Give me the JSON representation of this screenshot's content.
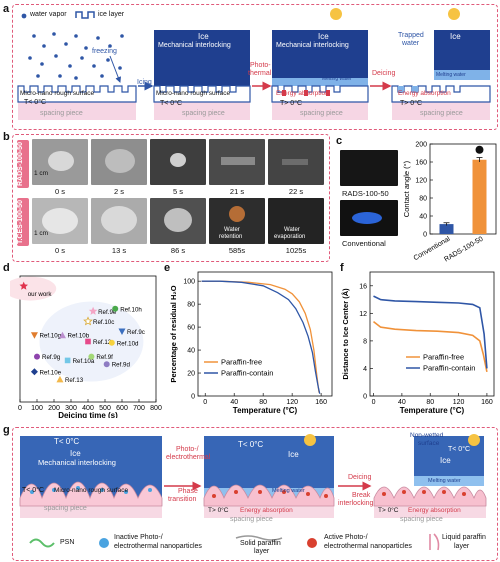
{
  "panel_a": {
    "label": "a",
    "legend_vapor": "water vapor",
    "legend_ice": "ice layer",
    "freezing": "freezing",
    "surface": "Micro-nano rough surface",
    "temp_below": "T< 0°C",
    "spacing": "spacing piece",
    "icing": "Icing",
    "ice": "Ice",
    "mechanical": "Mechanical interlocking",
    "photothermal_1": "Photo-",
    "photothermal_2": "thermal",
    "energy": "Energy absorption",
    "melting": "Melting water",
    "temp_above": "T> 0°C",
    "deicing": "Deicing",
    "trapped_1": "Trapped",
    "trapped_2": "water"
  },
  "panel_b": {
    "label": "b",
    "row1_tag": "RADS-100-50",
    "row2_tag": "T.CES-100-50",
    "scale": "1 cm",
    "row1_times": [
      "0 s",
      "2 s",
      "5 s",
      "21 s",
      "22 s"
    ],
    "row2_times": [
      "0 s",
      "13 s",
      "86 s",
      "585s",
      "1025s"
    ],
    "retention_1": "Water",
    "retention_2": "retention",
    "evaporation_1": "Water",
    "evaporation_2": "evaporation"
  },
  "panel_c": {
    "label": "c",
    "top_caption": "RADS-100-50",
    "bottom_caption": "Conventional"
  },
  "panel_d": {
    "label": "d",
    "our_work": "our work"
  },
  "panel_e": {
    "label": "e"
  },
  "panel_f": {
    "label": "f"
  },
  "panel_g": {
    "label": "g",
    "temp_below": "T< 0°C",
    "ice": "Ice",
    "mechanical": "Mechanical interlocking",
    "surface": "Micro-nano rough surface",
    "spacing": "spacing piece",
    "photo_1": "Photo-/",
    "photo_2": "electrothermal",
    "phase_1": "Phase",
    "phase_2": "transition",
    "melting": "Melting water",
    "temp_above": "T> 0°C",
    "energy": "Energy absorption",
    "deicing": "Deicing",
    "break_1": "Break",
    "break_2": "interlocking",
    "nonwet_1": "Non-wetted",
    "nonwet_2": "surface",
    "legend_psn": "PSN",
    "legend_inactive_1": "Inactive Photo-/",
    "legend_inactive_2": "electrothermal nanoparticles",
    "legend_solid_1": "Solid paraffin",
    "legend_solid_2": "layer",
    "legend_active_1": "Active Photo-/",
    "legend_active_2": "electrothermal nanoparticles",
    "legend_liquid_1": "Liquid paraffin",
    "legend_liquid_2": "layer"
  },
  "chart_data": [
    {
      "type": "bar",
      "id": "c",
      "categories": [
        "Conventional",
        "RADS-100-50"
      ],
      "values": [
        22,
        165
      ],
      "errors": [
        3,
        5
      ],
      "ylabel": "Contact angle (°)",
      "ylim": [
        0,
        200
      ],
      "yticks": [
        0,
        40,
        80,
        120,
        160,
        200
      ],
      "colors": [
        "#2f56a6",
        "#f0923a"
      ]
    },
    {
      "type": "scatter",
      "id": "d",
      "xlabel": "Deicing time (s)",
      "xlim": [
        0,
        800
      ],
      "xticks": [
        0,
        100,
        200,
        300,
        400,
        500,
        600,
        700,
        800
      ],
      "points": [
        {
          "label": "our work",
          "x": 22,
          "y": 0.92,
          "color": "#e0324c",
          "marker": "star"
        },
        {
          "label": "Ref.9e",
          "x": 430,
          "y": 0.72,
          "color": "#f3a5c5",
          "marker": "star"
        },
        {
          "label": "Ref.10h",
          "x": 560,
          "y": 0.74,
          "color": "#49a84a",
          "marker": "circle"
        },
        {
          "label": "Ref.10c",
          "x": 400,
          "y": 0.64,
          "color": "#ffffff",
          "marker": "star-open"
        },
        {
          "label": "Ref.9c",
          "x": 600,
          "y": 0.56,
          "color": "#3b6fbf",
          "marker": "triangle-down"
        },
        {
          "label": "Ref.10g",
          "x": 85,
          "y": 0.53,
          "color": "#e07d2e",
          "marker": "triangle-down"
        },
        {
          "label": "Ref.10b",
          "x": 250,
          "y": 0.53,
          "color": "#bb8fce",
          "marker": "triangle"
        },
        {
          "label": "Ref.12",
          "x": 400,
          "y": 0.48,
          "color": "#e64a8a",
          "marker": "square"
        },
        {
          "label": "Ref.10d",
          "x": 540,
          "y": 0.47,
          "color": "#f7d23d",
          "marker": "circle"
        },
        {
          "label": "Ref.9g",
          "x": 100,
          "y": 0.36,
          "color": "#8e44ad",
          "marker": "circle"
        },
        {
          "label": "Ref.10a",
          "x": 280,
          "y": 0.33,
          "color": "#72c7e7",
          "marker": "square"
        },
        {
          "label": "Ref.9f",
          "x": 420,
          "y": 0.36,
          "color": "#a3d977",
          "marker": "circle"
        },
        {
          "label": "Ref.9d",
          "x": 510,
          "y": 0.3,
          "color": "#8e7cc3",
          "marker": "circle"
        },
        {
          "label": "Ref.10e",
          "x": 85,
          "y": 0.24,
          "color": "#1f3f8f",
          "marker": "diamond"
        },
        {
          "label": "Ref.13",
          "x": 235,
          "y": 0.18,
          "color": "#f2b84b",
          "marker": "triangle"
        }
      ]
    },
    {
      "type": "line",
      "id": "e",
      "xlabel": "Temperature (°C)",
      "ylabel": "Percentage of residual H₂O",
      "xlim": [
        -10,
        175
      ],
      "ylim": [
        0,
        108
      ],
      "xticks": [
        0,
        40,
        80,
        120,
        160
      ],
      "yticks": [
        0,
        20,
        40,
        60,
        80,
        100
      ],
      "series": [
        {
          "name": "Paraffin-free",
          "color": "#f0923a",
          "x": [
            -5,
            20,
            60,
            90,
            110,
            120,
            130,
            138,
            145,
            150,
            154,
            157
          ],
          "y": [
            100,
            100,
            99,
            97,
            93,
            89,
            82,
            72,
            58,
            40,
            18,
            3
          ]
        },
        {
          "name": "Paraffin-contain",
          "color": "#2f56a6",
          "x": [
            -5,
            20,
            50,
            80,
            100,
            115,
            125,
            135,
            142,
            148,
            152,
            156,
            158
          ],
          "y": [
            100,
            100,
            99,
            96,
            90,
            84,
            76,
            64,
            52,
            38,
            22,
            8,
            2
          ]
        }
      ]
    },
    {
      "type": "line",
      "id": "f",
      "xlabel": "Temperature (°C)",
      "ylabel": "Distance to Ice Center (Å)",
      "xlim": [
        -5,
        170
      ],
      "ylim": [
        0,
        18
      ],
      "xticks": [
        0,
        40,
        80,
        120,
        160
      ],
      "yticks": [
        0,
        4,
        8,
        12,
        16
      ],
      "series": [
        {
          "name": "Paraffin-free",
          "color": "#f0923a",
          "x": [
            0,
            10,
            30,
            60,
            90,
            120,
            140,
            150,
            155,
            160
          ],
          "y": [
            10.8,
            10.0,
            9.7,
            9.5,
            9.4,
            9.2,
            8.8,
            8.0,
            6.0,
            3.5
          ]
        },
        {
          "name": "Paraffin-contain",
          "color": "#2f56a6",
          "x": [
            0,
            10,
            30,
            60,
            90,
            120,
            140,
            150,
            156,
            160
          ],
          "y": [
            14.5,
            14.0,
            13.8,
            13.7,
            13.6,
            13.5,
            13.3,
            12.8,
            9.0,
            4.0
          ]
        }
      ]
    }
  ]
}
